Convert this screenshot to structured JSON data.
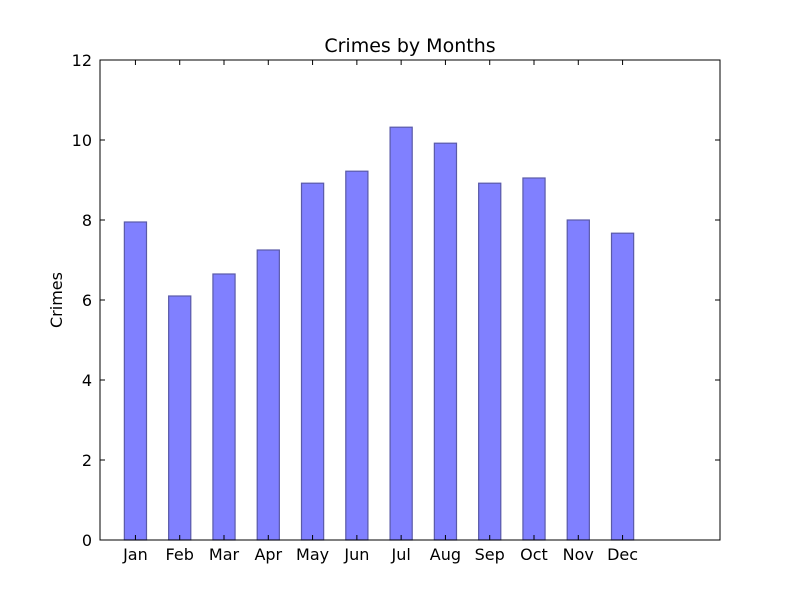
{
  "chart_data": {
    "type": "bar",
    "title": "Crimes by Months",
    "xlabel": "",
    "ylabel": "Crimes",
    "categories": [
      "Jan",
      "Feb",
      "Mar",
      "Apr",
      "May",
      "Jun",
      "Jul",
      "Aug",
      "Sep",
      "Oct",
      "Nov",
      "Dec"
    ],
    "values": [
      7.95,
      6.1,
      6.65,
      7.25,
      8.92,
      9.22,
      10.32,
      9.92,
      8.92,
      9.05,
      8.0,
      7.67
    ],
    "ylim": [
      0,
      12
    ],
    "yticks": [
      "0",
      "2",
      "4",
      "6",
      "8",
      "10",
      "12"
    ],
    "grid": false,
    "legend": "none",
    "bar_color": "#8080ff",
    "bar_edge_color": "#5a5aa8"
  }
}
